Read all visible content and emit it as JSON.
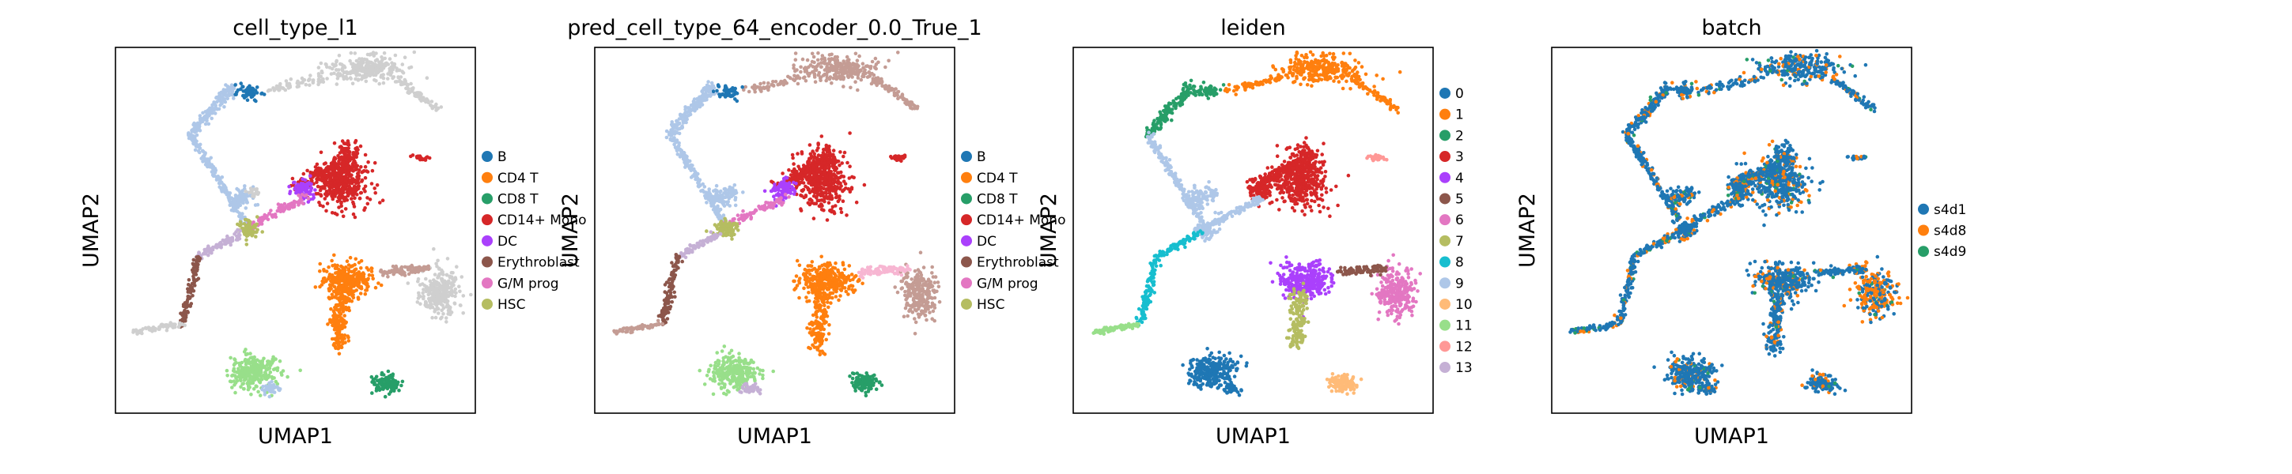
{
  "chart_data": [
    {
      "type": "scatter",
      "title": "cell_type_l1",
      "xlabel": "UMAP1",
      "ylabel": "UMAP2",
      "grid": false,
      "legend_placement": "right",
      "series": [
        {
          "name": "B",
          "color": "#1f77b4"
        },
        {
          "name": "CD4 T",
          "color": "#ff7f0e"
        },
        {
          "name": "CD8 T",
          "color": "#279e68"
        },
        {
          "name": "CD14+ Mono",
          "color": "#d62728"
        },
        {
          "name": "DC",
          "color": "#aa40fc"
        },
        {
          "name": "Erythroblast",
          "color": "#8c564b"
        },
        {
          "name": "G/M prog",
          "color": "#e377c2"
        },
        {
          "name": "HSC",
          "color": "#b5bd61"
        }
      ]
    },
    {
      "type": "scatter",
      "title": "pred_cell_type_64_encoder_0.0_True_1",
      "xlabel": "UMAP1",
      "ylabel": "UMAP2",
      "grid": false,
      "legend_placement": "right",
      "series": [
        {
          "name": "B",
          "color": "#1f77b4"
        },
        {
          "name": "CD4 T",
          "color": "#ff7f0e"
        },
        {
          "name": "CD8 T",
          "color": "#279e68"
        },
        {
          "name": "CD14+ Mono",
          "color": "#d62728"
        },
        {
          "name": "DC",
          "color": "#aa40fc"
        },
        {
          "name": "Erythroblast",
          "color": "#8c564b"
        },
        {
          "name": "G/M prog",
          "color": "#e377c2"
        },
        {
          "name": "HSC",
          "color": "#b5bd61"
        }
      ]
    },
    {
      "type": "scatter",
      "title": "leiden",
      "xlabel": "UMAP1",
      "ylabel": "UMAP2",
      "grid": false,
      "legend_placement": "right",
      "series": [
        {
          "name": "0",
          "color": "#1f77b4"
        },
        {
          "name": "1",
          "color": "#ff7f0e"
        },
        {
          "name": "2",
          "color": "#279e68"
        },
        {
          "name": "3",
          "color": "#d62728"
        },
        {
          "name": "4",
          "color": "#aa40fc"
        },
        {
          "name": "5",
          "color": "#8c564b"
        },
        {
          "name": "6",
          "color": "#e377c2"
        },
        {
          "name": "7",
          "color": "#b5bd61"
        },
        {
          "name": "8",
          "color": "#17becf"
        },
        {
          "name": "9",
          "color": "#aec7e8"
        },
        {
          "name": "10",
          "color": "#ffbb78"
        },
        {
          "name": "11",
          "color": "#98df8a"
        },
        {
          "name": "12",
          "color": "#ff9896"
        },
        {
          "name": "13",
          "color": "#c5b0d5"
        }
      ]
    },
    {
      "type": "scatter",
      "title": "batch",
      "xlabel": "UMAP1",
      "ylabel": "UMAP2",
      "grid": false,
      "legend_placement": "right",
      "series": [
        {
          "name": "s4d1",
          "color": "#1f77b4"
        },
        {
          "name": "s4d8",
          "color": "#ff7f0e"
        },
        {
          "name": "s4d9",
          "color": "#279e68"
        }
      ]
    }
  ]
}
